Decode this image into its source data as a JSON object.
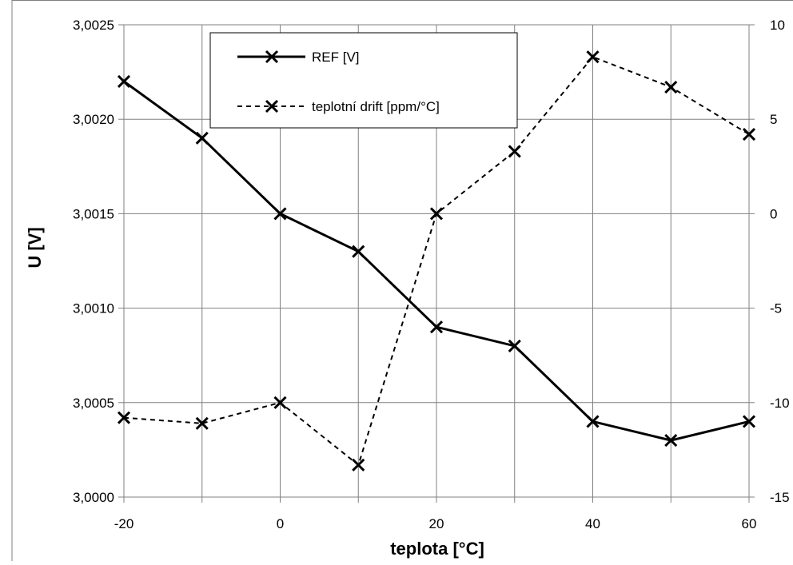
{
  "chart_data": {
    "type": "line",
    "xlabel": "teplota [°C]",
    "ylabel": "U [V]",
    "xlim": [
      -20,
      60
    ],
    "ylim": [
      3.0,
      3.0025
    ],
    "y2lim": [
      -15,
      10
    ],
    "x": [
      -20,
      -10,
      0,
      10,
      20,
      30,
      40,
      50,
      60
    ],
    "x_ticks": [
      "-20",
      "0",
      "20",
      "40",
      "60"
    ],
    "x_tick_values": [
      -20,
      0,
      20,
      40,
      60
    ],
    "y_ticks": [
      "3,0000",
      "3,0005",
      "3,0010",
      "3,0015",
      "3,0020",
      "3,0025"
    ],
    "y_tick_values": [
      3.0,
      3.0005,
      3.001,
      3.0015,
      3.002,
      3.0025
    ],
    "y2_ticks": [
      "-15",
      "-10",
      "-5",
      "0",
      "5",
      "10"
    ],
    "y2_tick_values": [
      -15,
      -10,
      -5,
      0,
      5,
      10
    ],
    "grid": true,
    "legend_position": "top-left",
    "series": [
      {
        "name": "REF [V]",
        "axis": "left",
        "style": "solid",
        "values": [
          3.0022,
          3.0019,
          3.0015,
          3.0013,
          3.0009,
          3.0008,
          3.0004,
          3.0003,
          3.0004
        ]
      },
      {
        "name": "teplotní drift [ppm/°C]",
        "axis": "right",
        "style": "dashed",
        "values": [
          -10.8,
          -11.1,
          -10.0,
          -13.3,
          0.0,
          3.3,
          8.3,
          6.7,
          4.2
        ]
      }
    ],
    "colors": {
      "line": "#000000",
      "grid": "#808080",
      "border": "#808080"
    }
  }
}
